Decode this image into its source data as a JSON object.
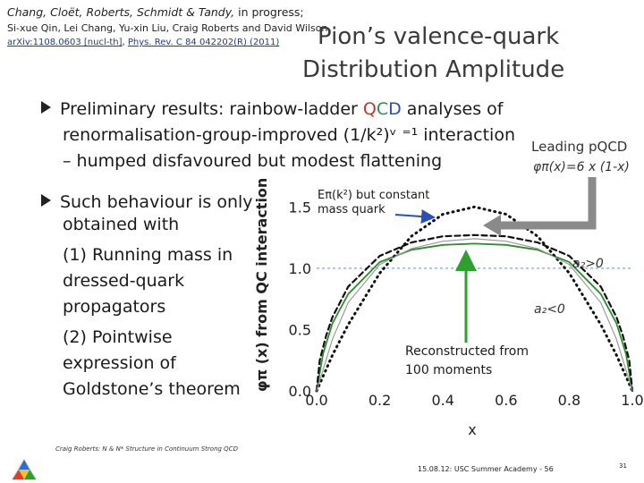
{
  "header": {
    "authors": "Chang, Cloët, Roberts, Schmidt & Tandy,",
    "authors_suffix": "in progress;",
    "authors2": "Si-xue Qin, Lei Chang, Yu-xin Liu, Craig Roberts and David Wilson,",
    "ref1": "arXiv:1108.0603 [nucl-th]",
    "ref_sep": ",",
    "ref2": "Phys. Rev. C 84 042202(R) (2011)"
  },
  "title": {
    "line1": "Pion’s valence-quark",
    "line2": "Distribution Amplitude"
  },
  "bullet1": {
    "line1_pre": "Preliminary results: rainbow-ladder ",
    "q": "Q",
    "c": "C",
    "d": "D",
    "line1_post": " analyses of",
    "line2": "renormalisation-group-improved (1/k²)ᵛ ⁼¹ interaction",
    "line3": "– humped disfavoured but modest flattening"
  },
  "leading": {
    "line1": "Leading pQCD",
    "line2": "φπ(x)=6 x (1-x)"
  },
  "bullet2": {
    "line1": "Such behaviour is only",
    "line2": "obtained with",
    "line3": "(1) Running mass in",
    "line4": "dressed-quark",
    "line5": "propagators",
    "line6": "(2) Pointwise",
    "line7": "expression of",
    "line8": "Goldstone’s theorem"
  },
  "annotations": {
    "ek_line1": "Eπ(k²) but constant",
    "ek_line2": "mass quark",
    "a2_pos": "a₂>0",
    "a2_neg": "a₂<0",
    "rec_line1": "Reconstructed from",
    "rec_line2": "100 moments"
  },
  "footer": {
    "left": "Craig Roberts: N & N* Structure in Continuum Strong QCD",
    "date": "15.08.12: USC Summer Academy - 56",
    "page": "31"
  },
  "colors": {
    "green_curve": "#2e8b2e",
    "dashed_curve": "#111111",
    "ref_line": "#8ab8e8",
    "arrow_gray": "#777777",
    "arrow_blue": "#2c4fb5",
    "arrow_green": "#2ea02e"
  },
  "chart_data": {
    "type": "line",
    "xlabel": "x",
    "ylabel": "φπ (x) from QC interaction",
    "xlim": [
      0,
      1
    ],
    "ylim": [
      0,
      1.75
    ],
    "xticks": [
      "0.0",
      "0.2",
      "0.4",
      "0.6",
      "0.8",
      "1.0"
    ],
    "yticks": [
      "0.0",
      "0.5",
      "1.0",
      "1.5"
    ],
    "reference_line_y": 1.0,
    "series": [
      {
        "style": "solid",
        "color": "green",
        "x": [
          0,
          0.02,
          0.05,
          0.1,
          0.2,
          0.3,
          0.4,
          0.5,
          0.6,
          0.7,
          0.8,
          0.9,
          0.95,
          0.98,
          1
        ],
        "y": [
          0,
          0.3,
          0.55,
          0.79,
          1.05,
          1.15,
          1.19,
          1.2,
          1.19,
          1.15,
          1.05,
          0.79,
          0.55,
          0.3,
          0
        ]
      },
      {
        "style": "dotted",
        "color": "black",
        "x": [
          0,
          0.05,
          0.1,
          0.2,
          0.3,
          0.4,
          0.5,
          0.6,
          0.7,
          0.8,
          0.9,
          0.95,
          1
        ],
        "y": [
          0,
          0.29,
          0.54,
          0.96,
          1.26,
          1.44,
          1.5,
          1.44,
          1.26,
          0.96,
          0.54,
          0.29,
          0
        ]
      },
      {
        "style": "dashed",
        "color": "black",
        "x": [
          0,
          0.01,
          0.03,
          0.05,
          0.1,
          0.2,
          0.3,
          0.4,
          0.5,
          0.6,
          0.7,
          0.8,
          0.9,
          0.95,
          0.97,
          0.99,
          1
        ],
        "y": [
          0,
          0.25,
          0.45,
          0.6,
          0.85,
          1.1,
          1.21,
          1.26,
          1.27,
          1.26,
          1.21,
          1.1,
          0.85,
          0.6,
          0.45,
          0.25,
          0
        ]
      },
      {
        "style": "solid-thin",
        "color": "gray",
        "x": [
          0,
          0.05,
          0.1,
          0.2,
          0.3,
          0.4,
          0.5,
          0.6,
          0.7,
          0.8,
          0.9,
          0.95,
          1
        ],
        "y": [
          0,
          0.42,
          0.72,
          1.03,
          1.16,
          1.22,
          1.24,
          1.22,
          1.16,
          1.03,
          0.72,
          0.42,
          0
        ]
      }
    ]
  }
}
